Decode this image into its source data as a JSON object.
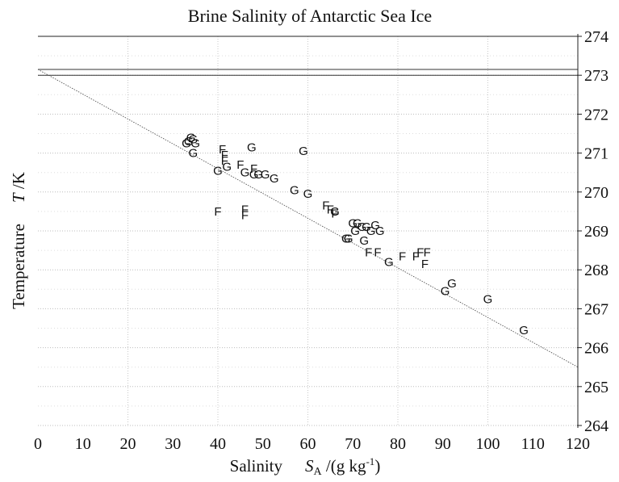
{
  "chart_data": {
    "type": "scatter",
    "title": "Brine Salinity of Antarctic Sea Ice",
    "xlabel": {
      "prefix": "Salinity",
      "symbol": "S",
      "subscript": "A",
      "unit_open": " /(g kg",
      "exponent": "-1",
      "unit_close": ")"
    },
    "ylabel": {
      "prefix": "Temperature",
      "symbol": "T",
      "unit": " /K"
    },
    "xlim": [
      0,
      120
    ],
    "ylim": [
      264,
      274
    ],
    "x_ticks": [
      "0",
      "10",
      "20",
      "30",
      "40",
      "50",
      "60",
      "70",
      "80",
      "90",
      "100",
      "110",
      "120"
    ],
    "y_ticks": [
      "264",
      "265",
      "266",
      "267",
      "268",
      "269",
      "270",
      "271",
      "272",
      "273",
      "274"
    ],
    "y_axis_side": "right",
    "grid": true,
    "horizontal_reference_lines": [
      273.15,
      273.0
    ],
    "fit_line": {
      "x": [
        0,
        120
      ],
      "y": [
        273.15,
        265.5
      ]
    },
    "series": [
      {
        "marker": "G",
        "points": [
          [
            33,
            271.25
          ],
          [
            33.5,
            271.3
          ],
          [
            34,
            271.4
          ],
          [
            34.5,
            271.35
          ],
          [
            35,
            271.25
          ],
          [
            34.5,
            271.0
          ],
          [
            47.5,
            271.15
          ],
          [
            59,
            271.05
          ],
          [
            40,
            270.55
          ],
          [
            42,
            270.65
          ],
          [
            46,
            270.5
          ],
          [
            48,
            270.45
          ],
          [
            49,
            270.45
          ],
          [
            50.5,
            270.45
          ],
          [
            52.5,
            270.35
          ],
          [
            57,
            270.05
          ],
          [
            60,
            269.95
          ],
          [
            66,
            269.5
          ],
          [
            70,
            269.2
          ],
          [
            71,
            269.2
          ],
          [
            72,
            269.1
          ],
          [
            73,
            269.1
          ],
          [
            74,
            269.0
          ],
          [
            75,
            269.15
          ],
          [
            76,
            269.0
          ],
          [
            70.5,
            269.0
          ],
          [
            68.5,
            268.8
          ],
          [
            69,
            268.8
          ],
          [
            72.5,
            268.75
          ],
          [
            78,
            268.2
          ],
          [
            90.5,
            267.45
          ],
          [
            92,
            267.65
          ],
          [
            100,
            267.25
          ],
          [
            108,
            266.45
          ]
        ]
      },
      {
        "marker": "F",
        "points": [
          [
            41,
            271.1
          ],
          [
            41.5,
            270.95
          ],
          [
            41.5,
            270.8
          ],
          [
            45,
            270.7
          ],
          [
            48,
            270.6
          ],
          [
            40,
            269.5
          ],
          [
            46,
            269.55
          ],
          [
            46,
            269.4
          ],
          [
            64,
            269.65
          ],
          [
            65,
            269.55
          ],
          [
            66,
            269.45
          ],
          [
            73.5,
            268.45
          ],
          [
            75.5,
            268.45
          ],
          [
            81,
            268.35
          ],
          [
            84,
            268.35
          ],
          [
            85,
            268.45
          ],
          [
            86.5,
            268.45
          ],
          [
            86,
            268.15
          ]
        ]
      }
    ]
  }
}
